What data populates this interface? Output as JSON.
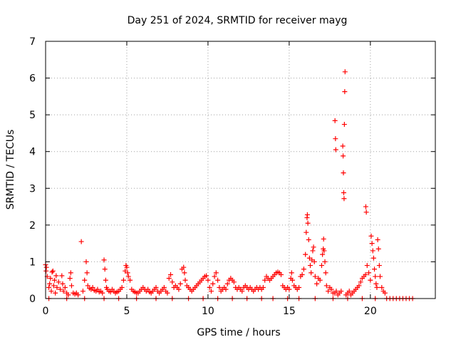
{
  "chart_data": {
    "type": "scatter",
    "title": "Day 251 of 2024, SRMTID for receiver mayg",
    "xlabel": "GPS time / hours",
    "ylabel": "SRMTID / TECUs",
    "xlim": [
      0,
      24
    ],
    "ylim": [
      0,
      7
    ],
    "x_ticks": [
      0,
      5,
      10,
      15,
      20
    ],
    "y_ticks": [
      0,
      1,
      2,
      3,
      4,
      5,
      6,
      7
    ],
    "grid": true,
    "marker": "plus",
    "color": "#ff0000",
    "series": [
      {
        "name": "SRMTID",
        "points": [
          [
            0.0,
            0.92
          ],
          [
            0.03,
            0.75
          ],
          [
            0.05,
            0.85
          ],
          [
            0.1,
            0.6
          ],
          [
            0.2,
            0.3
          ],
          [
            0.25,
            0.4
          ],
          [
            0.3,
            0.55
          ],
          [
            0.35,
            0.2
          ],
          [
            0.4,
            0.72
          ],
          [
            0.45,
            0.75
          ],
          [
            0.5,
            0.35
          ],
          [
            0.55,
            0.5
          ],
          [
            0.6,
            0.15
          ],
          [
            0.65,
            0.62
          ],
          [
            0.7,
            0.3
          ],
          [
            0.8,
            0.45
          ],
          [
            0.9,
            0.25
          ],
          [
            1.0,
            0.62
          ],
          [
            1.05,
            0.4
          ],
          [
            1.1,
            0.2
          ],
          [
            1.2,
            0.3
          ],
          [
            1.3,
            0.15
          ],
          [
            1.4,
            0.1
          ],
          [
            1.5,
            0.55
          ],
          [
            1.55,
            0.7
          ],
          [
            1.6,
            0.35
          ],
          [
            1.7,
            0.15
          ],
          [
            1.8,
            0.12
          ],
          [
            1.9,
            0.15
          ],
          [
            2.0,
            0.1
          ],
          [
            2.2,
            1.55
          ],
          [
            2.3,
            0.2
          ],
          [
            2.4,
            0.5
          ],
          [
            2.5,
            1.0
          ],
          [
            2.55,
            0.7
          ],
          [
            2.6,
            0.35
          ],
          [
            2.7,
            0.28
          ],
          [
            2.8,
            0.25
          ],
          [
            2.9,
            0.3
          ],
          [
            3.0,
            0.22
          ],
          [
            3.1,
            0.2
          ],
          [
            3.2,
            0.25
          ],
          [
            3.3,
            0.18
          ],
          [
            3.4,
            0.2
          ],
          [
            3.5,
            0.15
          ],
          [
            3.6,
            1.05
          ],
          [
            3.65,
            0.8
          ],
          [
            3.7,
            0.5
          ],
          [
            3.75,
            0.3
          ],
          [
            3.8,
            0.25
          ],
          [
            3.9,
            0.2
          ],
          [
            4.0,
            0.18
          ],
          [
            4.1,
            0.25
          ],
          [
            4.2,
            0.2
          ],
          [
            4.3,
            0.15
          ],
          [
            4.4,
            0.18
          ],
          [
            4.5,
            0.2
          ],
          [
            4.6,
            0.25
          ],
          [
            4.7,
            0.3
          ],
          [
            4.8,
            0.5
          ],
          [
            4.9,
            0.75
          ],
          [
            4.95,
            0.9
          ],
          [
            5.0,
            0.85
          ],
          [
            5.05,
            0.7
          ],
          [
            5.1,
            0.6
          ],
          [
            5.2,
            0.5
          ],
          [
            5.3,
            0.25
          ],
          [
            5.4,
            0.2
          ],
          [
            5.5,
            0.18
          ],
          [
            5.6,
            0.15
          ],
          [
            5.7,
            0.15
          ],
          [
            5.8,
            0.2
          ],
          [
            5.9,
            0.25
          ],
          [
            6.0,
            0.3
          ],
          [
            6.1,
            0.25
          ],
          [
            6.2,
            0.2
          ],
          [
            6.3,
            0.25
          ],
          [
            6.4,
            0.18
          ],
          [
            6.5,
            0.15
          ],
          [
            6.6,
            0.2
          ],
          [
            6.7,
            0.25
          ],
          [
            6.8,
            0.3
          ],
          [
            6.9,
            0.2
          ],
          [
            7.0,
            0.15
          ],
          [
            7.1,
            0.2
          ],
          [
            7.2,
            0.25
          ],
          [
            7.3,
            0.3
          ],
          [
            7.4,
            0.2
          ],
          [
            7.5,
            0.15
          ],
          [
            7.6,
            0.55
          ],
          [
            7.7,
            0.65
          ],
          [
            7.8,
            0.45
          ],
          [
            7.9,
            0.3
          ],
          [
            8.0,
            0.35
          ],
          [
            8.1,
            0.3
          ],
          [
            8.2,
            0.25
          ],
          [
            8.3,
            0.4
          ],
          [
            8.4,
            0.8
          ],
          [
            8.5,
            0.85
          ],
          [
            8.55,
            0.7
          ],
          [
            8.6,
            0.5
          ],
          [
            8.7,
            0.35
          ],
          [
            8.8,
            0.3
          ],
          [
            8.9,
            0.25
          ],
          [
            9.0,
            0.2
          ],
          [
            9.1,
            0.25
          ],
          [
            9.2,
            0.3
          ],
          [
            9.3,
            0.35
          ],
          [
            9.4,
            0.4
          ],
          [
            9.5,
            0.45
          ],
          [
            9.6,
            0.5
          ],
          [
            9.7,
            0.55
          ],
          [
            9.8,
            0.6
          ],
          [
            9.9,
            0.62
          ],
          [
            10.0,
            0.5
          ],
          [
            10.1,
            0.3
          ],
          [
            10.2,
            0.2
          ],
          [
            10.3,
            0.4
          ],
          [
            10.4,
            0.6
          ],
          [
            10.5,
            0.7
          ],
          [
            10.6,
            0.5
          ],
          [
            10.7,
            0.3
          ],
          [
            10.8,
            0.2
          ],
          [
            10.9,
            0.25
          ],
          [
            11.0,
            0.3
          ],
          [
            11.1,
            0.25
          ],
          [
            11.2,
            0.4
          ],
          [
            11.3,
            0.5
          ],
          [
            11.4,
            0.55
          ],
          [
            11.5,
            0.5
          ],
          [
            11.6,
            0.45
          ],
          [
            11.7,
            0.3
          ],
          [
            11.8,
            0.25
          ],
          [
            11.9,
            0.3
          ],
          [
            12.0,
            0.25
          ],
          [
            12.1,
            0.2
          ],
          [
            12.2,
            0.3
          ],
          [
            12.3,
            0.35
          ],
          [
            12.4,
            0.3
          ],
          [
            12.5,
            0.25
          ],
          [
            12.6,
            0.3
          ],
          [
            12.7,
            0.25
          ],
          [
            12.8,
            0.2
          ],
          [
            12.9,
            0.25
          ],
          [
            13.0,
            0.3
          ],
          [
            13.1,
            0.25
          ],
          [
            13.2,
            0.3
          ],
          [
            13.3,
            0.25
          ],
          [
            13.4,
            0.3
          ],
          [
            13.5,
            0.5
          ],
          [
            13.6,
            0.6
          ],
          [
            13.7,
            0.55
          ],
          [
            13.8,
            0.5
          ],
          [
            13.9,
            0.55
          ],
          [
            14.0,
            0.6
          ],
          [
            14.1,
            0.65
          ],
          [
            14.2,
            0.7
          ],
          [
            14.3,
            0.72
          ],
          [
            14.4,
            0.7
          ],
          [
            14.5,
            0.65
          ],
          [
            14.6,
            0.35
          ],
          [
            14.7,
            0.3
          ],
          [
            14.8,
            0.25
          ],
          [
            14.9,
            0.3
          ],
          [
            15.0,
            0.25
          ],
          [
            15.1,
            0.55
          ],
          [
            15.15,
            0.7
          ],
          [
            15.2,
            0.5
          ],
          [
            15.3,
            0.35
          ],
          [
            15.4,
            0.3
          ],
          [
            15.5,
            0.25
          ],
          [
            15.6,
            0.3
          ],
          [
            15.7,
            0.6
          ],
          [
            15.8,
            0.65
          ],
          [
            15.9,
            0.8
          ],
          [
            16.0,
            1.2
          ],
          [
            16.05,
            1.8
          ],
          [
            16.1,
            2.2
          ],
          [
            16.12,
            2.28
          ],
          [
            16.15,
            2.05
          ],
          [
            16.2,
            1.6
          ],
          [
            16.25,
            1.1
          ],
          [
            16.3,
            0.9
          ],
          [
            16.35,
            0.7
          ],
          [
            16.4,
            1.05
          ],
          [
            16.45,
            1.3
          ],
          [
            16.5,
            1.4
          ],
          [
            16.55,
            1.0
          ],
          [
            16.6,
            0.6
          ],
          [
            16.7,
            0.4
          ],
          [
            16.8,
            0.55
          ],
          [
            16.9,
            0.5
          ],
          [
            17.0,
            0.9
          ],
          [
            17.05,
            1.2
          ],
          [
            17.1,
            1.35
          ],
          [
            17.12,
            1.62
          ],
          [
            17.15,
            1.3
          ],
          [
            17.2,
            1.0
          ],
          [
            17.25,
            0.7
          ],
          [
            17.3,
            0.35
          ],
          [
            17.4,
            0.2
          ],
          [
            17.5,
            0.3
          ],
          [
            17.6,
            0.25
          ],
          [
            17.7,
            0.15
          ],
          [
            17.8,
            0.15
          ],
          [
            17.9,
            0.2
          ],
          [
            17.82,
            4.84
          ],
          [
            17.85,
            4.35
          ],
          [
            17.87,
            4.05
          ],
          [
            18.0,
            0.1
          ],
          [
            18.1,
            0.15
          ],
          [
            18.2,
            0.2
          ],
          [
            18.3,
            4.15
          ],
          [
            18.32,
            3.88
          ],
          [
            18.34,
            3.42
          ],
          [
            18.36,
            2.88
          ],
          [
            18.38,
            2.72
          ],
          [
            18.4,
            4.74
          ],
          [
            18.42,
            5.63
          ],
          [
            18.44,
            6.17
          ],
          [
            18.5,
            0.1
          ],
          [
            18.6,
            0.15
          ],
          [
            18.7,
            0.2
          ],
          [
            18.8,
            0.1
          ],
          [
            18.9,
            0.15
          ],
          [
            19.0,
            0.2
          ],
          [
            19.1,
            0.25
          ],
          [
            19.2,
            0.3
          ],
          [
            19.3,
            0.35
          ],
          [
            19.4,
            0.45
          ],
          [
            19.5,
            0.55
          ],
          [
            19.6,
            0.6
          ],
          [
            19.7,
            0.65
          ],
          [
            19.72,
            2.5
          ],
          [
            19.75,
            2.35
          ],
          [
            19.8,
            0.9
          ],
          [
            19.9,
            0.7
          ],
          [
            20.0,
            0.5
          ],
          [
            20.05,
            1.7
          ],
          [
            20.1,
            1.5
          ],
          [
            20.15,
            1.3
          ],
          [
            20.2,
            1.1
          ],
          [
            20.25,
            0.8
          ],
          [
            20.3,
            0.6
          ],
          [
            20.35,
            0.4
          ],
          [
            20.4,
            0.3
          ],
          [
            20.45,
            1.6
          ],
          [
            20.5,
            1.35
          ],
          [
            20.55,
            0.9
          ],
          [
            20.6,
            0.6
          ],
          [
            20.7,
            0.3
          ],
          [
            20.8,
            0.2
          ],
          [
            20.9,
            0.15
          ],
          [
            21.0,
            0.0
          ],
          [
            21.2,
            0.0
          ],
          [
            21.4,
            0.0
          ],
          [
            21.6,
            0.0
          ],
          [
            21.8,
            0.0
          ],
          [
            22.0,
            0.0
          ],
          [
            22.2,
            0.0
          ],
          [
            22.4,
            0.0
          ],
          [
            22.6,
            0.0
          ],
          [
            0.2,
            0.0
          ],
          [
            1.3,
            0.0
          ],
          [
            2.4,
            0.0
          ],
          [
            3.6,
            0.0
          ],
          [
            4.5,
            0.0
          ],
          [
            5.6,
            0.0
          ],
          [
            6.8,
            0.0
          ],
          [
            7.8,
            0.0
          ],
          [
            8.8,
            0.0
          ],
          [
            9.7,
            0.0
          ],
          [
            10.6,
            0.0
          ],
          [
            11.5,
            0.0
          ],
          [
            12.4,
            0.0
          ],
          [
            13.3,
            0.0
          ],
          [
            14.0,
            0.0
          ],
          [
            14.9,
            0.0
          ],
          [
            15.6,
            0.0
          ],
          [
            16.6,
            0.0
          ],
          [
            17.7,
            0.0
          ],
          [
            18.6,
            0.0
          ],
          [
            19.5,
            0.0
          ],
          [
            20.3,
            0.0
          ]
        ]
      }
    ]
  }
}
